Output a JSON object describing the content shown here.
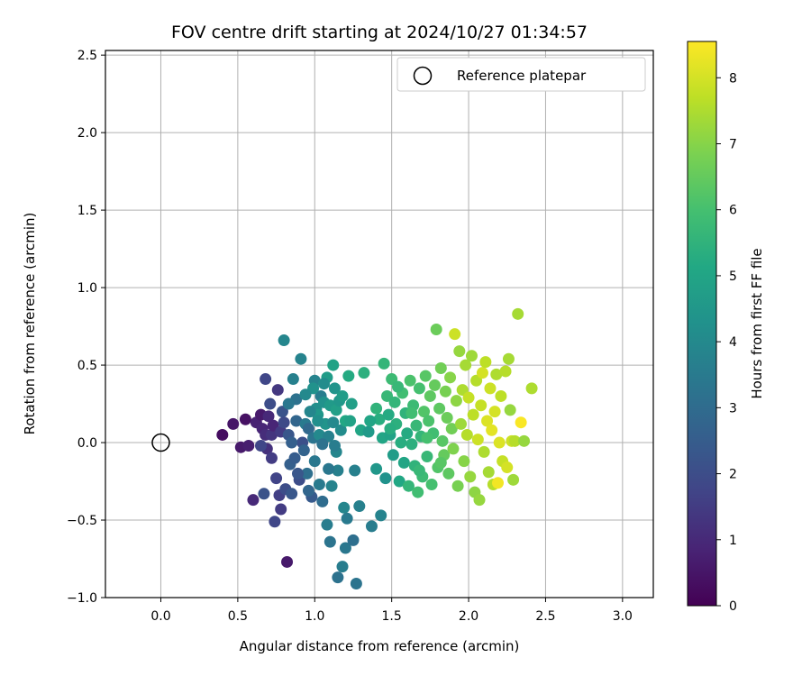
{
  "chart_data": {
    "type": "scatter",
    "title": "FOV centre drift starting at 2024/10/27 01:34:57",
    "xlabel": "Angular distance from reference (arcmin)",
    "ylabel": "Rotation from reference (arcmin)",
    "xlim": [
      -0.36,
      3.2
    ],
    "ylim": [
      -1.0,
      2.53
    ],
    "xticks": [
      "0.0",
      "0.5",
      "1.0",
      "1.5",
      "2.0",
      "2.5",
      "3.0"
    ],
    "xtick_values": [
      0,
      0.5,
      1.0,
      1.5,
      2.0,
      2.5,
      3.0
    ],
    "yticks": [
      "−1.0",
      "−0.5",
      "0.0",
      "0.5",
      "1.0",
      "1.5",
      "2.0",
      "2.5"
    ],
    "ytick_values": [
      -1.0,
      -0.5,
      0,
      0.5,
      1.0,
      1.5,
      2.0,
      2.5
    ],
    "grid": true,
    "legend": {
      "position": "top-right",
      "label": "Reference platepar"
    },
    "reference_point": {
      "x": 0.0,
      "y": 0.0
    },
    "colorbar": {
      "label": "Hours from first FF file",
      "range": [
        0,
        8.55
      ],
      "ticks": [
        "0",
        "1",
        "2",
        "3",
        "4",
        "5",
        "6",
        "7",
        "8"
      ],
      "tick_values": [
        0,
        1,
        2,
        3,
        4,
        5,
        6,
        7,
        8
      ],
      "colormap": "viridis"
    },
    "points": [
      [
        0.4,
        0.05,
        0.3
      ],
      [
        0.47,
        0.12,
        0.5
      ],
      [
        0.52,
        -0.03,
        0.6
      ],
      [
        0.55,
        0.15,
        0.4
      ],
      [
        0.57,
        -0.02,
        0.7
      ],
      [
        0.6,
        -0.37,
        1.0
      ],
      [
        0.62,
        0.13,
        0.8
      ],
      [
        0.65,
        0.18,
        0.6
      ],
      [
        0.66,
        0.09,
        0.9
      ],
      [
        0.68,
        0.05,
        1.1
      ],
      [
        0.67,
        -0.33,
        2.2
      ],
      [
        0.68,
        0.41,
        1.8
      ],
      [
        0.69,
        -0.04,
        1.2
      ],
      [
        0.7,
        0.17,
        1.0
      ],
      [
        0.72,
        0.05,
        1.3
      ],
      [
        0.72,
        -0.1,
        1.5
      ],
      [
        0.73,
        0.11,
        0.9
      ],
      [
        0.75,
        -0.23,
        1.7
      ],
      [
        0.76,
        0.34,
        1.4
      ],
      [
        0.77,
        -0.34,
        1.6
      ],
      [
        0.78,
        0.07,
        1.5
      ],
      [
        0.78,
        -0.43,
        1.5
      ],
      [
        0.79,
        0.2,
        2.2
      ],
      [
        0.8,
        0.13,
        1.9
      ],
      [
        0.81,
        -0.3,
        2.0
      ],
      [
        0.82,
        -0.77,
        0.6
      ],
      [
        0.83,
        0.05,
        2.3
      ],
      [
        0.84,
        -0.14,
        2.6
      ],
      [
        0.85,
        -0.33,
        2.3
      ],
      [
        0.86,
        0.41,
        3.7
      ],
      [
        0.87,
        -0.1,
        2.5
      ],
      [
        0.88,
        0.14,
        2.8
      ],
      [
        0.88,
        0.28,
        3.2
      ],
      [
        0.9,
        -0.24,
        2.0
      ],
      [
        0.92,
        0.0,
        2.1
      ],
      [
        0.94,
        0.12,
        3.5
      ],
      [
        0.95,
        -0.2,
        3.1
      ],
      [
        0.96,
        0.09,
        2.9
      ],
      [
        0.98,
        -0.35,
        2.4
      ],
      [
        0.99,
        0.03,
        3.3
      ],
      [
        1.0,
        0.4,
        3.8
      ],
      [
        1.0,
        -0.12,
        3.4
      ],
      [
        1.01,
        0.22,
        4.2
      ],
      [
        1.02,
        0.18,
        4.5
      ],
      [
        1.03,
        -0.27,
        3.5
      ],
      [
        1.03,
        0.05,
        4.0
      ],
      [
        1.04,
        0.3,
        3.6
      ],
      [
        1.05,
        -0.38,
        3.0
      ],
      [
        1.06,
        0.26,
        4.3
      ],
      [
        1.07,
        0.12,
        4.4
      ],
      [
        1.08,
        -0.53,
        3.6
      ],
      [
        1.08,
        0.42,
        4.7
      ],
      [
        1.09,
        0.04,
        3.7
      ],
      [
        1.1,
        -0.64,
        3.3
      ],
      [
        1.1,
        0.24,
        4.6
      ],
      [
        1.11,
        -0.28,
        3.8
      ],
      [
        1.12,
        0.5,
        4.9
      ],
      [
        1.12,
        0.13,
        4.0
      ],
      [
        1.13,
        0.35,
        4.4
      ],
      [
        1.14,
        -0.06,
        3.9
      ],
      [
        1.14,
        0.21,
        4.8
      ],
      [
        1.15,
        -0.18,
        3.7
      ],
      [
        1.15,
        -0.87,
        3.2
      ],
      [
        1.16,
        0.27,
        4.5
      ],
      [
        1.17,
        0.08,
        4.1
      ],
      [
        1.18,
        -0.8,
        3.6
      ],
      [
        1.19,
        -0.42,
        3.9
      ],
      [
        1.2,
        0.14,
        5.1
      ],
      [
        1.2,
        -0.68,
        3.4
      ],
      [
        1.21,
        -0.49,
        3.5
      ],
      [
        1.22,
        0.43,
        5.2
      ],
      [
        1.23,
        0.14,
        4.9
      ],
      [
        1.25,
        -0.63,
        3.1
      ],
      [
        1.27,
        -0.91,
        3.3
      ],
      [
        1.29,
        -0.41,
        3.7
      ],
      [
        1.3,
        0.08,
        5.0
      ],
      [
        1.32,
        0.45,
        5.4
      ],
      [
        1.35,
        0.07,
        4.6
      ],
      [
        1.37,
        -0.54,
        3.6
      ],
      [
        1.4,
        -0.17,
        4.5
      ],
      [
        1.4,
        0.22,
        5.5
      ],
      [
        1.42,
        0.15,
        5.3
      ],
      [
        1.43,
        -0.47,
        3.8
      ],
      [
        1.44,
        0.03,
        5.0
      ],
      [
        1.45,
        0.51,
        5.6
      ],
      [
        1.46,
        -0.23,
        4.3
      ],
      [
        1.47,
        0.3,
        5.7
      ],
      [
        1.48,
        0.18,
        5.2
      ],
      [
        1.49,
        0.05,
        4.9
      ],
      [
        1.5,
        0.41,
        5.8
      ],
      [
        1.51,
        -0.08,
        4.7
      ],
      [
        1.52,
        0.26,
        5.6
      ],
      [
        1.53,
        0.12,
        5.4
      ],
      [
        1.55,
        -0.25,
        5.1
      ],
      [
        1.56,
        0.0,
        5.3
      ],
      [
        1.57,
        0.32,
        5.9
      ],
      [
        1.58,
        -0.13,
        5.0
      ],
      [
        1.59,
        0.19,
        5.5
      ],
      [
        1.6,
        0.06,
        5.2
      ],
      [
        1.61,
        -0.28,
        5.6
      ],
      [
        1.62,
        0.4,
        6.1
      ],
      [
        1.63,
        -0.01,
        5.4
      ],
      [
        1.64,
        0.24,
        5.8
      ],
      [
        1.65,
        -0.15,
        5.5
      ],
      [
        1.66,
        0.11,
        5.7
      ],
      [
        1.67,
        -0.32,
        5.9
      ],
      [
        1.68,
        0.35,
        6.0
      ],
      [
        1.69,
        0.04,
        5.6
      ],
      [
        1.7,
        -0.22,
        5.8
      ],
      [
        1.71,
        0.2,
        6.2
      ],
      [
        1.72,
        0.43,
        6.3
      ],
      [
        1.73,
        -0.09,
        5.7
      ],
      [
        1.74,
        0.14,
        6.1
      ],
      [
        1.75,
        0.3,
        6.4
      ],
      [
        1.76,
        -0.27,
        6.0
      ],
      [
        1.77,
        0.06,
        5.9
      ],
      [
        1.78,
        0.37,
        6.5
      ],
      [
        1.79,
        0.73,
        6.6
      ],
      [
        1.8,
        -0.16,
        6.2
      ],
      [
        1.81,
        0.22,
        6.4
      ],
      [
        1.82,
        0.48,
        6.7
      ],
      [
        1.83,
        0.01,
        6.3
      ],
      [
        1.84,
        -0.08,
        6.5
      ],
      [
        1.85,
        0.33,
        6.8
      ],
      [
        1.86,
        0.16,
        6.6
      ],
      [
        1.87,
        -0.2,
        6.4
      ],
      [
        1.88,
        0.42,
        7.0
      ],
      [
        1.89,
        0.09,
        6.7
      ],
      [
        1.9,
        -0.04,
        6.9
      ],
      [
        1.91,
        0.7,
        7.9
      ],
      [
        1.92,
        0.27,
        7.1
      ],
      [
        1.93,
        -0.28,
        6.8
      ],
      [
        1.94,
        0.59,
        7.2
      ],
      [
        1.95,
        0.12,
        7.3
      ],
      [
        1.96,
        0.34,
        7.5
      ],
      [
        1.97,
        -0.12,
        7.0
      ],
      [
        1.98,
        0.5,
        7.4
      ],
      [
        1.99,
        0.05,
        7.6
      ],
      [
        2.0,
        0.29,
        7.8
      ],
      [
        2.01,
        -0.22,
        7.2
      ],
      [
        2.02,
        0.56,
        7.3
      ],
      [
        2.03,
        0.18,
        7.7
      ],
      [
        2.04,
        -0.32,
        7.1
      ],
      [
        2.05,
        0.4,
        7.6
      ],
      [
        2.06,
        0.02,
        7.9
      ],
      [
        2.07,
        -0.37,
        7.2
      ],
      [
        2.08,
        0.24,
        7.8
      ],
      [
        2.09,
        0.45,
        8.0
      ],
      [
        2.1,
        -0.06,
        7.5
      ],
      [
        2.11,
        0.52,
        7.7
      ],
      [
        2.12,
        0.14,
        8.1
      ],
      [
        2.13,
        -0.19,
        7.4
      ],
      [
        2.14,
        0.35,
        7.9
      ],
      [
        2.15,
        0.08,
        8.2
      ],
      [
        2.16,
        -0.27,
        7.6
      ],
      [
        2.17,
        0.2,
        8.0
      ],
      [
        2.18,
        0.44,
        7.5
      ],
      [
        2.19,
        -0.26,
        8.4
      ],
      [
        2.2,
        0.0,
        8.1
      ],
      [
        2.21,
        0.3,
        7.7
      ],
      [
        2.22,
        -0.12,
        7.8
      ],
      [
        2.24,
        0.46,
        7.6
      ],
      [
        2.25,
        -0.16,
        8.0
      ],
      [
        2.26,
        0.54,
        7.4
      ],
      [
        2.27,
        0.21,
        7.2
      ],
      [
        2.28,
        0.01,
        7.9
      ],
      [
        2.29,
        -0.24,
        7.3
      ],
      [
        2.3,
        0.01,
        7.6
      ],
      [
        2.32,
        0.83,
        7.4
      ],
      [
        2.34,
        0.13,
        8.5
      ],
      [
        2.36,
        0.01,
        7.2
      ],
      [
        2.41,
        0.35,
        7.5
      ],
      [
        0.65,
        -0.02,
        1.8
      ],
      [
        0.71,
        0.25,
        2.0
      ],
      [
        0.74,
        -0.51,
        1.8
      ],
      [
        0.8,
        0.66,
        3.9
      ],
      [
        0.83,
        0.25,
        3.4
      ],
      [
        0.91,
        0.54,
        3.8
      ],
      [
        0.93,
        -0.05,
        2.7
      ],
      [
        0.97,
        0.2,
        3.9
      ],
      [
        1.26,
        -0.18,
        3.7
      ],
      [
        1.18,
        0.3,
        4.7
      ],
      [
        1.09,
        -0.17,
        3.4
      ],
      [
        1.06,
        0.38,
        4.1
      ],
      [
        1.05,
        -0.01,
        3.2
      ],
      [
        0.99,
        0.35,
        4.3
      ],
      [
        0.96,
        -0.31,
        2.8
      ],
      [
        0.89,
        -0.2,
        2.3
      ],
      [
        0.85,
        0.0,
        2.6
      ],
      [
        0.94,
        0.31,
        4.0
      ],
      [
        1.02,
        0.14,
        4.2
      ],
      [
        1.13,
        -0.02,
        3.6
      ],
      [
        1.24,
        0.25,
        4.8
      ],
      [
        1.36,
        0.14,
        5.0
      ],
      [
        1.49,
        0.09,
        5.3
      ],
      [
        1.54,
        0.36,
        5.7
      ],
      [
        1.63,
        0.19,
        5.9
      ],
      [
        1.68,
        -0.18,
        5.7
      ],
      [
        1.73,
        0.03,
        6.0
      ],
      [
        1.82,
        -0.13,
        6.3
      ]
    ]
  }
}
